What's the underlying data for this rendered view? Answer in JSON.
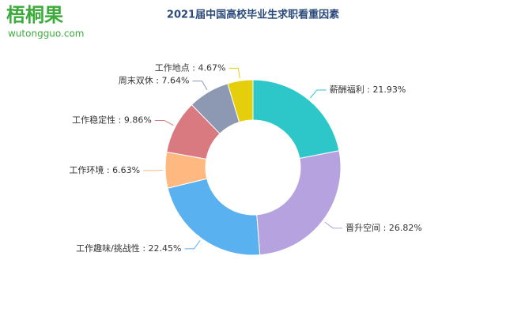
{
  "logo": {
    "name": "梧桐果",
    "site": "wutongguo.com"
  },
  "chart_data": {
    "type": "donut",
    "title": "2021届中国高校毕业生求职看重因素",
    "categories": [
      "薪酬福利",
      "晋升空间",
      "工作趣味/挑战性",
      "工作环境",
      "工作稳定性",
      "周末双休",
      "工作地点"
    ],
    "values": [
      21.93,
      26.82,
      22.45,
      6.63,
      9.86,
      7.64,
      4.67
    ],
    "value_labels": [
      "21.93%",
      "26.82%",
      "22.45%",
      "6.63%",
      "9.86%",
      "7.64%",
      "4.67%"
    ],
    "label_separator": " : ",
    "colors": [
      "#2ec7c9",
      "#b6a2de",
      "#5ab1ef",
      "#ffb980",
      "#d87a80",
      "#8d98b3",
      "#e5cf0d"
    ]
  }
}
